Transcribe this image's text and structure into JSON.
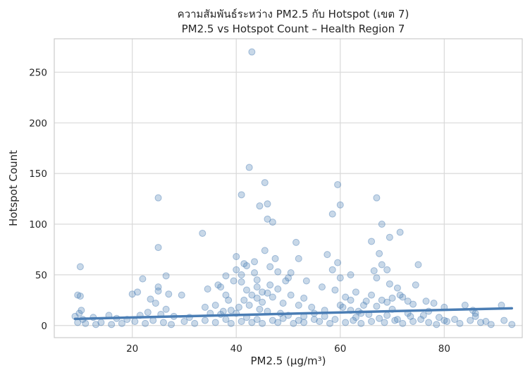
{
  "chart_data": {
    "type": "scatter",
    "title": "ความสัมพันธ์ระหว่าง PM2.5 กับ Hotspot (เขต 7)",
    "subtitle": "PM2.5 vs Hotspot Count – Health Region 7",
    "xlabel": "PM2.5 (µg/m³)",
    "ylabel": "Hotspot Count",
    "xlim": [
      5,
      95
    ],
    "ylim": [
      -12,
      283
    ],
    "x_ticks": [
      20,
      40,
      60,
      80
    ],
    "y_ticks": [
      0,
      50,
      100,
      150,
      200,
      250
    ],
    "grid": true,
    "legend": "none",
    "point_color": "#4a7db4",
    "line_color": "#4a7db4",
    "regression_line": {
      "x": [
        9,
        93
      ],
      "y": [
        6.5,
        17
      ]
    },
    "points": [
      [
        43,
        270
      ],
      [
        42.5,
        156
      ],
      [
        45.5,
        141
      ],
      [
        59.5,
        139
      ],
      [
        41,
        129
      ],
      [
        67,
        126
      ],
      [
        25,
        126
      ],
      [
        46,
        120
      ],
      [
        60,
        119
      ],
      [
        44.5,
        118
      ],
      [
        58.5,
        110
      ],
      [
        46,
        105
      ],
      [
        47,
        102
      ],
      [
        68,
        100
      ],
      [
        33.5,
        91
      ],
      [
        71.5,
        92
      ],
      [
        69.5,
        87
      ],
      [
        25,
        77
      ],
      [
        51.5,
        82
      ],
      [
        66,
        83
      ],
      [
        45.5,
        74
      ],
      [
        57.5,
        70
      ],
      [
        67.5,
        71
      ],
      [
        40,
        68
      ],
      [
        52,
        66
      ],
      [
        47.5,
        66
      ],
      [
        41.5,
        61
      ],
      [
        43.5,
        63
      ],
      [
        59.5,
        62
      ],
      [
        68,
        60
      ],
      [
        75,
        60
      ],
      [
        10,
        58
      ],
      [
        42,
        59
      ],
      [
        46.5,
        58
      ],
      [
        40,
        55
      ],
      [
        43.5,
        52
      ],
      [
        48,
        53
      ],
      [
        50.5,
        52
      ],
      [
        66.5,
        54
      ],
      [
        69,
        55
      ],
      [
        58.5,
        55
      ],
      [
        62,
        50
      ],
      [
        26.5,
        49
      ],
      [
        38,
        49
      ],
      [
        22,
        46
      ],
      [
        50,
        47
      ],
      [
        60,
        47
      ],
      [
        67,
        47
      ],
      [
        39.5,
        44
      ],
      [
        41,
        43
      ],
      [
        53.5,
        44
      ],
      [
        74.5,
        40
      ],
      [
        69.5,
        41
      ],
      [
        36.5,
        40
      ],
      [
        37,
        38
      ],
      [
        25,
        38
      ],
      [
        34.5,
        36
      ],
      [
        48,
        36
      ],
      [
        44,
        38
      ],
      [
        46.5,
        40
      ],
      [
        56.5,
        38
      ],
      [
        63,
        33
      ],
      [
        20,
        31
      ],
      [
        21,
        33
      ],
      [
        25,
        34
      ],
      [
        27,
        31
      ],
      [
        29.5,
        30
      ],
      [
        71,
        37
      ],
      [
        9.5,
        30
      ],
      [
        10,
        29
      ],
      [
        66,
        30
      ],
      [
        72,
        28
      ],
      [
        23.5,
        26
      ],
      [
        53,
        27
      ],
      [
        61,
        28
      ],
      [
        62,
        25
      ],
      [
        76.5,
        24
      ],
      [
        78,
        22
      ],
      [
        84,
        20
      ],
      [
        91,
        20
      ],
      [
        24.5,
        22
      ],
      [
        38.5,
        25
      ],
      [
        45,
        23
      ],
      [
        54.5,
        18
      ],
      [
        65,
        24
      ],
      [
        69,
        23
      ],
      [
        74,
        21
      ],
      [
        80,
        18
      ],
      [
        85.5,
        15
      ],
      [
        12.5,
        8
      ],
      [
        15.5,
        10
      ],
      [
        17,
        7
      ],
      [
        19,
        6
      ],
      [
        28,
        9
      ],
      [
        31,
        8
      ],
      [
        35,
        12
      ],
      [
        37.5,
        14
      ],
      [
        40.5,
        18
      ],
      [
        42.5,
        20
      ],
      [
        44.5,
        16
      ],
      [
        46,
        14
      ],
      [
        48.5,
        12
      ],
      [
        50,
        10
      ],
      [
        55,
        12
      ],
      [
        57,
        9
      ],
      [
        63.5,
        14
      ],
      [
        65.5,
        11
      ],
      [
        70,
        16
      ],
      [
        73,
        12
      ],
      [
        76,
        10
      ],
      [
        79,
        8
      ],
      [
        82,
        6
      ],
      [
        86,
        9
      ],
      [
        88,
        4
      ],
      [
        91.5,
        5
      ],
      [
        93,
        1
      ],
      [
        9.5,
        3
      ],
      [
        10.5,
        6
      ],
      [
        11,
        2
      ],
      [
        13,
        1
      ],
      [
        14,
        3
      ],
      [
        16,
        1
      ],
      [
        18,
        2
      ],
      [
        20.5,
        4
      ],
      [
        22.5,
        2
      ],
      [
        24,
        5
      ],
      [
        26,
        3
      ],
      [
        27.5,
        1
      ],
      [
        30,
        4
      ],
      [
        32,
        2
      ],
      [
        34,
        5
      ],
      [
        36,
        3
      ],
      [
        38,
        6
      ],
      [
        39,
        2
      ],
      [
        41,
        4
      ],
      [
        42,
        8
      ],
      [
        43,
        3
      ],
      [
        44,
        6
      ],
      [
        45,
        2
      ],
      [
        47,
        5
      ],
      [
        48,
        3
      ],
      [
        49,
        7
      ],
      [
        51,
        2
      ],
      [
        52,
        5
      ],
      [
        53,
        3
      ],
      [
        56,
        4
      ],
      [
        58,
        2
      ],
      [
        59,
        6
      ],
      [
        61,
        3
      ],
      [
        62.5,
        5
      ],
      [
        64,
        2
      ],
      [
        66,
        4
      ],
      [
        67.5,
        7
      ],
      [
        68.5,
        3
      ],
      [
        70.5,
        5
      ],
      [
        72,
        2
      ],
      [
        74,
        4
      ],
      [
        75.5,
        6
      ],
      [
        77,
        3
      ],
      [
        78.5,
        1
      ],
      [
        80.5,
        4
      ],
      [
        83,
        2
      ],
      [
        85,
        5
      ],
      [
        87,
        3
      ],
      [
        89,
        1
      ],
      [
        9,
        9
      ],
      [
        9.8,
        12
      ],
      [
        10.2,
        15
      ],
      [
        21.5,
        10
      ],
      [
        23,
        13
      ],
      [
        25.5,
        11
      ],
      [
        26.5,
        16
      ],
      [
        37,
        11
      ],
      [
        39,
        15
      ],
      [
        40,
        12
      ],
      [
        41.5,
        25
      ],
      [
        43,
        30
      ],
      [
        44,
        27
      ],
      [
        46,
        32
      ],
      [
        47,
        28
      ],
      [
        49,
        22
      ],
      [
        50.5,
        30
      ],
      [
        52,
        20
      ],
      [
        60.5,
        18
      ],
      [
        62,
        15
      ],
      [
        64.5,
        20
      ],
      [
        67,
        19
      ],
      [
        68,
        25
      ],
      [
        70,
        27
      ],
      [
        71.5,
        30
      ],
      [
        73,
        24
      ],
      [
        64,
        12
      ],
      [
        60,
        20
      ],
      [
        59,
        35
      ],
      [
        42,
        35
      ],
      [
        45,
        33
      ],
      [
        38,
        30
      ],
      [
        36,
        20
      ],
      [
        34,
        18
      ],
      [
        49.5,
        44
      ],
      [
        44,
        45
      ],
      [
        41,
        50
      ],
      [
        63,
        8
      ],
      [
        57,
        15
      ],
      [
        55,
        6
      ],
      [
        53,
        9
      ],
      [
        86,
        12
      ],
      [
        80,
        5
      ],
      [
        77,
        14
      ],
      [
        73.5,
        9
      ],
      [
        71,
        6
      ],
      [
        69,
        10
      ]
    ]
  }
}
